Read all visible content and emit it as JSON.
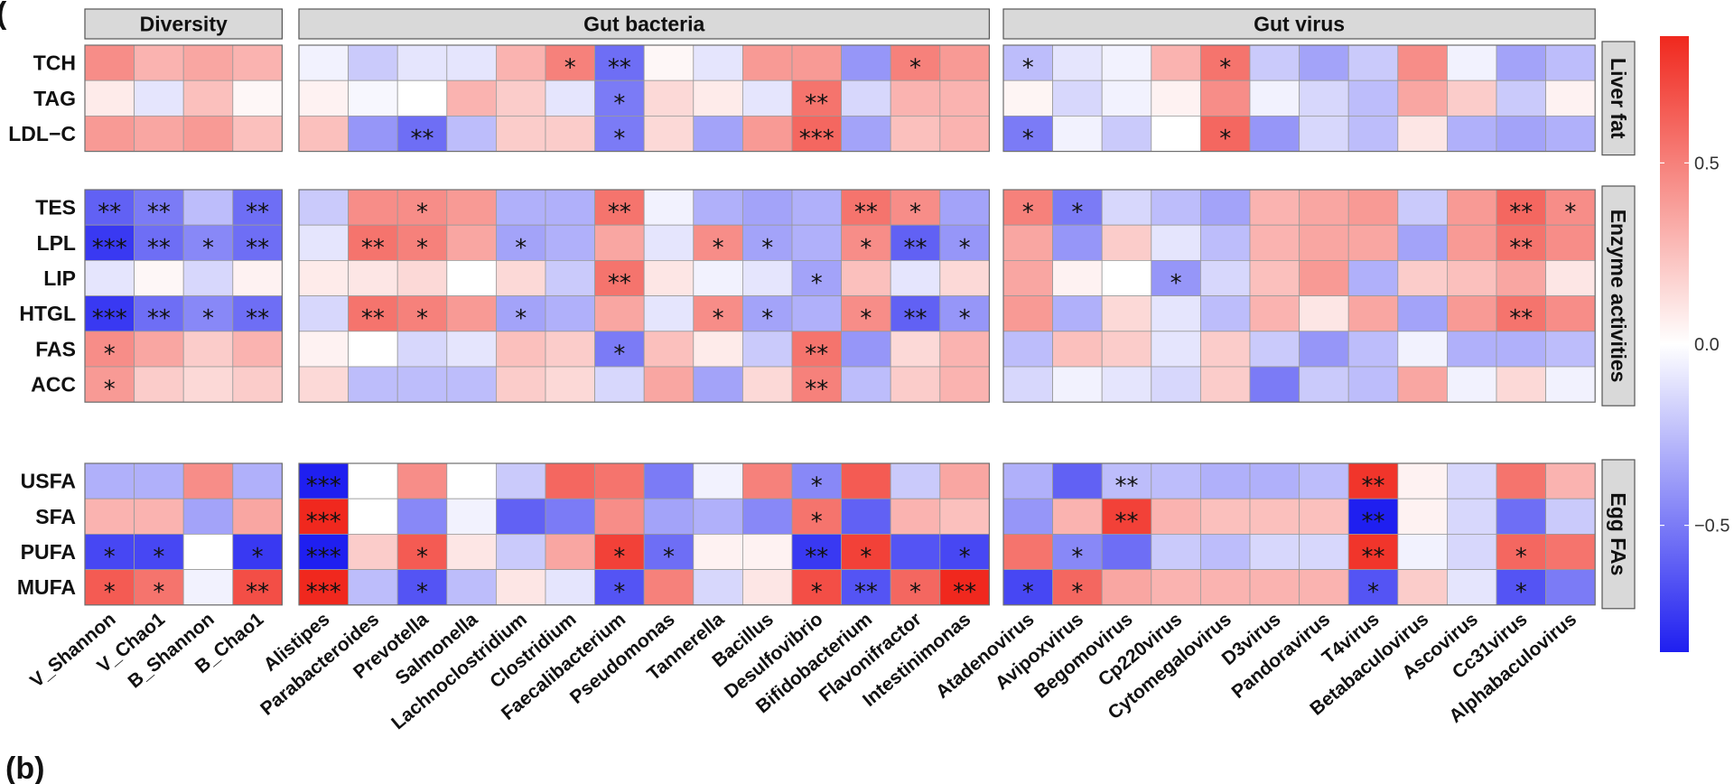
{
  "panel_letters": {
    "top": "(",
    "bottom": "(b)"
  },
  "chart_data": {
    "type": "heatmap",
    "title": "",
    "column_groups": [
      {
        "name": "Diversity",
        "columns": [
          "V_Shannon",
          "V_Chao1",
          "B_Shannon",
          "B_Chao1"
        ]
      },
      {
        "name": "Gut bacteria",
        "columns": [
          "Alistipes",
          "Parabacteroides",
          "Prevotella",
          "Salmonella",
          "Lachnoclostridium",
          "Clostridium",
          "Faecalibacterium",
          "Pseudomonas",
          "Tannerella",
          "Bacillus",
          "Desulfovibrio",
          "Bifidobacterium",
          "Flavonifractor",
          "Intestinimonas"
        ]
      },
      {
        "name": "Gut virus",
        "columns": [
          "Atadenovirus",
          "Avipoxvirus",
          "Begomovirus",
          "Cp220virus",
          "Cytomegalovirus",
          "D3virus",
          "Pandoravirus",
          "T4virus",
          "Betabaculovirus",
          "Ascovirus",
          "Cc31virus",
          "Alphabaculovirus"
        ]
      }
    ],
    "row_groups": [
      {
        "name": "Liver fat",
        "rows": [
          "TCH",
          "TAG",
          "LDL−C"
        ]
      },
      {
        "name": "Enzyme activities",
        "rows": [
          "TES",
          "LPL",
          "LIP",
          "HTGL",
          "FAS",
          "ACC"
        ]
      },
      {
        "name": "Egg FAs",
        "rows": [
          "USFA",
          "SFA",
          "PUFA",
          "MUFA"
        ]
      }
    ],
    "value_range": [
      -0.85,
      0.85
    ],
    "colorbar": {
      "low_color": "#1f1ff0",
      "mid_color": "#ffffff",
      "high_color": "#f0281e",
      "ticks": [
        0.5,
        0.0,
        -0.5
      ],
      "tick_labels": [
        "0.5",
        "0.0",
        "−0.5"
      ]
    },
    "values": [
      [
        0.45,
        0.3,
        0.35,
        0.3,
        -0.05,
        -0.2,
        -0.1,
        -0.1,
        0.3,
        0.5,
        -0.55,
        0.03,
        -0.1,
        0.4,
        0.4,
        -0.4,
        0.5,
        0.4,
        -0.25,
        -0.1,
        -0.05,
        0.3,
        0.55,
        -0.2,
        -0.35,
        -0.2,
        0.45,
        -0.05,
        -0.35,
        -0.25
      ],
      [
        0.08,
        -0.1,
        0.25,
        0.03,
        0.05,
        -0.03,
        0.0,
        0.3,
        0.2,
        -0.1,
        -0.5,
        0.15,
        0.08,
        -0.1,
        0.55,
        -0.15,
        0.3,
        0.3,
        0.04,
        -0.15,
        -0.05,
        0.05,
        0.45,
        -0.05,
        -0.15,
        -0.25,
        0.35,
        0.2,
        -0.2,
        0.05
      ],
      [
        0.4,
        0.35,
        0.4,
        0.25,
        0.25,
        -0.4,
        -0.55,
        -0.25,
        0.2,
        0.2,
        -0.5,
        0.15,
        -0.35,
        0.4,
        0.6,
        -0.35,
        0.25,
        0.3,
        -0.5,
        -0.05,
        -0.2,
        0.0,
        0.6,
        -0.4,
        -0.15,
        -0.25,
        0.1,
        -0.3,
        -0.35,
        -0.3
      ],
      [
        -0.6,
        -0.5,
        -0.25,
        -0.55,
        -0.2,
        0.45,
        0.45,
        0.4,
        -0.3,
        -0.3,
        0.55,
        -0.05,
        -0.3,
        -0.35,
        -0.3,
        0.55,
        0.45,
        -0.35,
        0.5,
        -0.5,
        -0.15,
        -0.25,
        -0.35,
        0.3,
        0.35,
        0.4,
        -0.2,
        0.4,
        0.6,
        0.45
      ],
      [
        -0.75,
        -0.55,
        -0.45,
        -0.55,
        -0.1,
        0.55,
        0.5,
        0.35,
        -0.35,
        -0.3,
        0.35,
        -0.1,
        0.45,
        -0.35,
        -0.3,
        0.45,
        -0.6,
        -0.4,
        0.35,
        -0.4,
        0.2,
        -0.1,
        -0.25,
        0.3,
        0.35,
        0.35,
        -0.35,
        0.4,
        0.55,
        0.45
      ],
      [
        -0.1,
        0.03,
        -0.15,
        0.05,
        0.08,
        0.1,
        0.15,
        0.0,
        0.15,
        -0.2,
        0.55,
        0.1,
        -0.05,
        -0.1,
        -0.35,
        0.25,
        -0.1,
        0.15,
        0.35,
        0.05,
        0.0,
        -0.4,
        -0.15,
        0.25,
        0.4,
        -0.3,
        0.2,
        0.25,
        0.35,
        0.1
      ],
      [
        -0.75,
        -0.55,
        -0.45,
        -0.55,
        -0.15,
        0.55,
        0.5,
        0.4,
        -0.35,
        -0.3,
        0.35,
        -0.1,
        0.45,
        -0.35,
        -0.3,
        0.45,
        -0.6,
        -0.4,
        0.4,
        -0.3,
        0.15,
        -0.1,
        -0.25,
        0.3,
        0.1,
        0.35,
        -0.35,
        0.4,
        0.55,
        0.45
      ],
      [
        0.45,
        0.35,
        0.2,
        0.3,
        0.05,
        0.0,
        -0.15,
        -0.1,
        0.25,
        0.2,
        -0.5,
        0.25,
        0.08,
        -0.2,
        0.55,
        -0.4,
        0.15,
        0.3,
        -0.25,
        0.25,
        0.2,
        -0.1,
        0.2,
        -0.2,
        -0.4,
        -0.25,
        -0.05,
        -0.3,
        -0.3,
        -0.25
      ],
      [
        0.4,
        0.2,
        0.15,
        0.2,
        0.15,
        -0.25,
        -0.25,
        -0.25,
        0.2,
        0.15,
        -0.15,
        0.35,
        -0.35,
        0.15,
        0.5,
        -0.25,
        0.2,
        0.3,
        -0.15,
        -0.05,
        -0.1,
        -0.15,
        0.2,
        -0.5,
        -0.2,
        -0.25,
        0.35,
        -0.05,
        0.15,
        -0.05
      ],
      [
        -0.3,
        -0.3,
        0.45,
        -0.3,
        -0.95,
        0.0,
        0.45,
        0.0,
        -0.2,
        0.6,
        0.55,
        -0.5,
        -0.05,
        0.5,
        -0.45,
        0.65,
        -0.2,
        0.35,
        -0.3,
        -0.6,
        -0.25,
        -0.25,
        -0.3,
        -0.3,
        -0.25,
        0.8,
        0.05,
        -0.15,
        0.55,
        0.3
      ],
      [
        0.3,
        0.3,
        -0.35,
        0.35,
        0.9,
        0.0,
        -0.45,
        -0.05,
        -0.6,
        -0.5,
        0.45,
        -0.35,
        -0.3,
        -0.45,
        0.55,
        -0.6,
        0.3,
        0.25,
        -0.4,
        0.3,
        0.75,
        0.3,
        0.25,
        0.25,
        0.25,
        -0.85,
        0.05,
        -0.15,
        -0.55,
        -0.2
      ],
      [
        -0.7,
        -0.7,
        0.0,
        -0.75,
        -0.95,
        0.2,
        0.65,
        0.1,
        -0.2,
        0.35,
        0.75,
        -0.55,
        0.05,
        0.05,
        -0.75,
        0.75,
        -0.65,
        -0.7,
        0.55,
        -0.45,
        -0.55,
        -0.2,
        -0.25,
        -0.15,
        -0.15,
        0.8,
        -0.05,
        -0.15,
        0.6,
        0.55
      ],
      [
        0.65,
        0.55,
        -0.05,
        0.7,
        0.9,
        -0.25,
        -0.65,
        -0.25,
        0.1,
        -0.1,
        -0.65,
        0.5,
        -0.15,
        0.1,
        0.7,
        -0.65,
        0.6,
        0.85,
        -0.7,
        0.6,
        0.35,
        0.3,
        0.3,
        0.3,
        0.3,
        -0.65,
        0.2,
        -0.1,
        -0.65,
        -0.5
      ]
    ],
    "significance": [
      [
        "",
        "",
        "",
        "",
        "",
        "",
        "",
        "",
        "",
        "*",
        "**",
        "",
        "",
        "",
        "",
        "",
        "*",
        "",
        "*",
        "",
        "",
        "",
        "*",
        "",
        "",
        "",
        "",
        "",
        "",
        ""
      ],
      [
        "",
        "",
        "",
        "",
        "",
        "",
        "",
        "",
        "",
        "",
        "*",
        "",
        "",
        "",
        "**",
        "",
        "",
        "",
        "",
        "",
        "",
        "",
        "",
        "",
        "",
        "",
        "",
        "",
        "",
        ""
      ],
      [
        "",
        "",
        "",
        "",
        "",
        "",
        "**",
        "",
        "",
        "",
        "*",
        "",
        "",
        "",
        "***",
        "",
        "",
        "",
        "*",
        "",
        "",
        "",
        "*",
        "",
        "",
        "",
        "",
        "",
        "",
        ""
      ],
      [
        "**",
        "**",
        "",
        "**",
        "",
        "",
        "*",
        "",
        "",
        "",
        "**",
        "",
        "",
        "",
        "",
        "**",
        "*",
        "",
        "*",
        "*",
        "",
        "",
        "",
        "",
        "",
        "",
        "",
        "",
        "**",
        "*"
      ],
      [
        "***",
        "**",
        "*",
        "**",
        "",
        "**",
        "*",
        "",
        "*",
        "",
        "",
        "",
        "*",
        "*",
        "",
        "*",
        "**",
        "*",
        "",
        "",
        "",
        "",
        "",
        "",
        "",
        "",
        "",
        "",
        "**",
        ""
      ],
      [
        "",
        "",
        "",
        "",
        "",
        "",
        "",
        "",
        "",
        "",
        "**",
        "",
        "",
        "",
        "*",
        "",
        "",
        "",
        "",
        "",
        "",
        "*",
        "",
        "",
        "",
        "",
        "",
        "",
        "",
        ""
      ],
      [
        "***",
        "**",
        "*",
        "**",
        "",
        "**",
        "*",
        "",
        "*",
        "",
        "",
        "",
        "*",
        "*",
        "",
        "*",
        "**",
        "*",
        "",
        "",
        "",
        "",
        "",
        "",
        "",
        "",
        "",
        "",
        "**",
        ""
      ],
      [
        "*",
        "",
        "",
        "",
        "",
        "",
        "",
        "",
        "",
        "",
        "*",
        "",
        "",
        "",
        "**",
        "",
        "",
        "",
        "",
        "",
        "",
        "",
        "",
        "",
        "",
        "",
        "",
        "",
        "",
        ""
      ],
      [
        "*",
        "",
        "",
        "",
        "",
        "",
        "",
        "",
        "",
        "",
        "",
        "",
        "",
        "",
        "**",
        "",
        "",
        "",
        "",
        "",
        "",
        "",
        "",
        "",
        "",
        "",
        "",
        "",
        "",
        ""
      ],
      [
        "",
        "",
        "",
        "",
        "***",
        "",
        "",
        "",
        "",
        "",
        "",
        "",
        "",
        "",
        "*",
        "",
        "",
        "",
        "",
        "",
        "**",
        "",
        "",
        "",
        "",
        "**",
        "",
        "",
        "",
        ""
      ],
      [
        "",
        "",
        "",
        "",
        "***",
        "",
        "",
        "",
        "",
        "",
        "",
        "",
        "",
        "",
        "*",
        "",
        "",
        "",
        "",
        "",
        "**",
        "",
        "",
        "",
        "",
        "**",
        "",
        "",
        "",
        ""
      ],
      [
        "*",
        "*",
        "",
        "*",
        "***",
        "",
        "*",
        "",
        "",
        "",
        "*",
        "*",
        "",
        "",
        "**",
        "*",
        "",
        "*",
        "",
        "*",
        "",
        "",
        "",
        "",
        "",
        "**",
        "",
        "",
        "*",
        ""
      ],
      [
        "*",
        "*",
        "",
        "**",
        "***",
        "",
        "*",
        "",
        "",
        "",
        "*",
        "",
        "",
        "",
        "*",
        "**",
        "*",
        "**",
        "*",
        "*",
        "",
        "",
        "",
        "",
        "",
        "*",
        "",
        "",
        "*",
        ""
      ]
    ]
  }
}
